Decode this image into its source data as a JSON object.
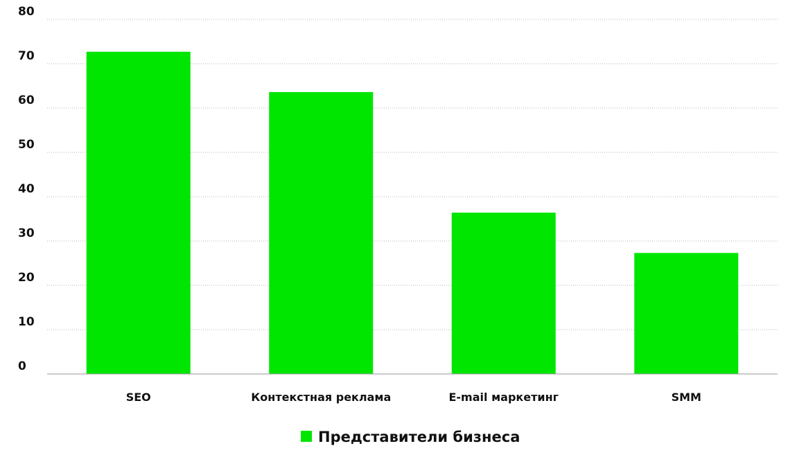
{
  "chart_data": {
    "type": "bar",
    "categories": [
      "SEO",
      "Контекстная реклама",
      "E-mail маркетинг",
      "SMM"
    ],
    "series": [
      {
        "name": "Представители бизнеса",
        "values": [
          72.7,
          63.6,
          36.4,
          27.3
        ]
      }
    ],
    "ylim": [
      0,
      80
    ],
    "yticks": [
      0,
      10,
      20,
      30,
      40,
      50,
      60,
      70,
      80
    ],
    "grid": true,
    "grid_style": "dotted",
    "legend_position": "bottom-center",
    "bar_color": "#00e600",
    "title": "",
    "xlabel": "",
    "ylabel": ""
  }
}
